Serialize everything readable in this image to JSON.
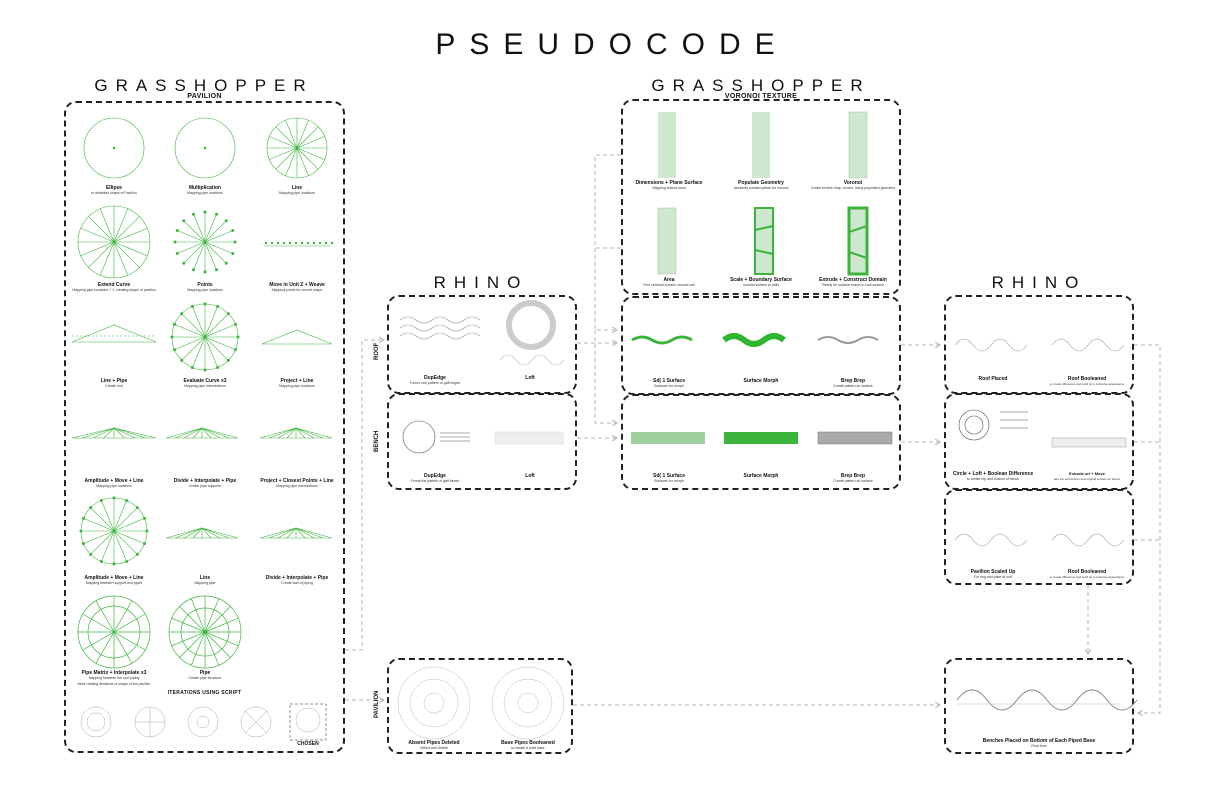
{
  "title": "PSEUDOCODE",
  "headers": {
    "gh_left": "GRASSHOPPER",
    "rhino_mid": "RHINO",
    "gh_right": "GRASSHOPPER",
    "rhino_right": "RHINO"
  },
  "pavilion_panel": {
    "title": "PAVILION",
    "steps": [
      {
        "name": "Ellipse",
        "desc": "to establish shape of Pavilion"
      },
      {
        "name": "Multiplication",
        "desc": "Mapping pipe locations"
      },
      {
        "name": "Line",
        "desc": "Mapping pipe locations"
      },
      {
        "name": "Extend Curve",
        "desc": "Mapping pipe locations + 1, creating shape of pavilion"
      },
      {
        "name": "Points",
        "desc": "Mapping pipe locations"
      },
      {
        "name": "Move in Unit Z + Weave",
        "desc": "Mapping points for curved shape"
      },
      {
        "name": "Line + Pipe",
        "desc": "Create roof"
      },
      {
        "name": "Evaluate Curve x3",
        "desc": "Mapping pipe intersections"
      },
      {
        "name": "Project + Line",
        "desc": "Mapping pipe locations"
      },
      {
        "name": "Amplitude + Move + Line",
        "desc": "Mapping pipe locations"
      },
      {
        "name": "Divide + Interpolate + Pipe",
        "desc": "Create pipe supports"
      },
      {
        "name": "Project + Closest Points + Line",
        "desc": "Mapping pipe intersections"
      },
      {
        "name": "Amplitude + Move + Line",
        "desc": "Mapping between support and pipes"
      },
      {
        "name": "Line",
        "desc": "Mapping pipe"
      },
      {
        "name": "Divide + Interpolate + Pipe",
        "desc": "Create wall of piping"
      },
      {
        "name": "Pipe Matrix + Interpolate x3",
        "desc": "Mapping between the roof piping"
      },
      {
        "name": "Pipe",
        "desc": "Create pipe structure"
      }
    ],
    "pipe_matrix_desc2": "three rotating iterations of shape of the pavilion",
    "iterations_title": "ITERATIONS USING SCRIPT",
    "chosen": "CHOSEN"
  },
  "rhino_roof": {
    "side": "ROOF",
    "items": [
      {
        "name": "DupEdge",
        "desc": "Forms roof pattern of gaff edges"
      },
      {
        "name": "Loft",
        "desc": ""
      }
    ]
  },
  "rhino_bench": {
    "side": "BENCH",
    "items": [
      {
        "name": "DupEdge",
        "desc": "Forms the pattern of gaff bench"
      },
      {
        "name": "Loft",
        "desc": ""
      }
    ]
  },
  "rhino_pav": {
    "side": "PAVILION",
    "items": [
      {
        "name": "Absent Pipes Deleted",
        "desc": "Select and Delete"
      },
      {
        "name": "Base Pipes Booleaned",
        "desc": "to create a solid base"
      }
    ]
  },
  "voronoi": {
    "title": "VORONOI TEXTURE",
    "items": [
      {
        "name": "Dimensions + Plane Surface",
        "desc": "Mapping texture area"
      },
      {
        "name": "Populate Geometry",
        "desc": "randomly created points for voronoi"
      },
      {
        "name": "Voronoi",
        "desc": "Create texture map, curves, using populated geometry"
      },
      {
        "name": "Area",
        "desc": "Find centroid of each voronoi cell"
      },
      {
        "name": "Scale + Boundary Surface",
        "desc": "voronoi surface to cells"
      },
      {
        "name": "Extrude + Construct Domain",
        "desc": "Ready for surface morph to roof surface"
      }
    ]
  },
  "gh_roof": {
    "items": [
      {
        "name": "Sd( 1 Surface",
        "desc": "Surfaces for morph"
      },
      {
        "name": "Surface Morph",
        "desc": ""
      },
      {
        "name": "Brep Brep",
        "desc": "Create pattern on surface"
      }
    ]
  },
  "gh_bench": {
    "items": [
      {
        "name": "Sd( 1 Surface",
        "desc": "Surfaces for morph"
      },
      {
        "name": "Surface Morph",
        "desc": ""
      },
      {
        "name": "Brep Brep",
        "desc": "Create pattern on surface"
      }
    ]
  },
  "rhino_right_roof": {
    "items": [
      {
        "name": "Roof Placed",
        "desc": ""
      },
      {
        "name": "Roof Booleaned",
        "desc": "to create difference and solid for a cohesive appearance"
      }
    ]
  },
  "rhino_right_bench": {
    "items": [
      {
        "name": "Circle + Loft + Boolean Difference",
        "desc": "to create top and bottom of bench"
      },
      {
        "name": "Extrude srf + Move",
        "desc": "add top and bottom and original surface for bench"
      }
    ]
  },
  "rhino_right_scale": {
    "items": [
      {
        "name": "Pavilion Scaled Up",
        "desc": "For ring and plate of roof"
      },
      {
        "name": "Roof Booleaned",
        "desc": "to create difference and solid for a cohesive appearance"
      }
    ]
  },
  "rhino_final": {
    "name": "Benches Placed on Bottom of Each Piped Base",
    "desc": "Final form"
  },
  "colors": {
    "accent": "#3db53d",
    "light": "#cfe7cf",
    "line": "#222222",
    "connector": "#b5b5b5"
  }
}
